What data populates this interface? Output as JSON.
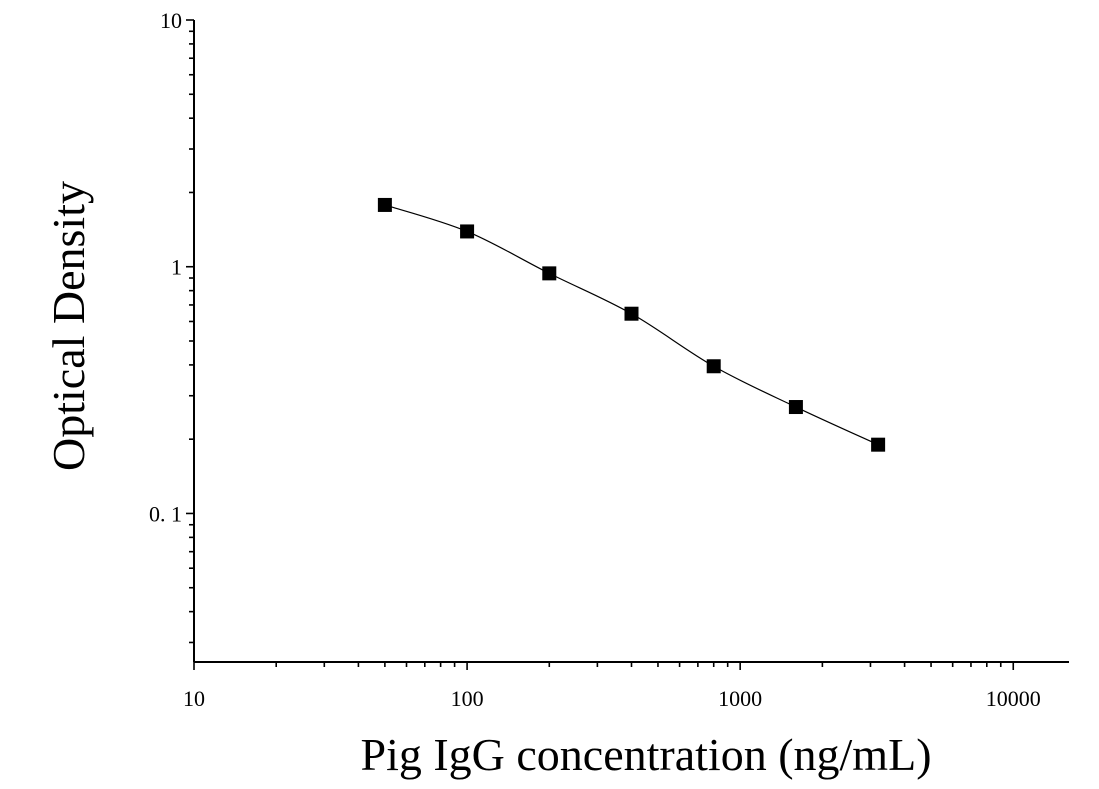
{
  "chart_data": {
    "type": "scatter",
    "title": "",
    "xlabel": "Pig IgG concentration (ng/mL)",
    "ylabel": "Optical Density",
    "x_scale": "log",
    "y_scale": "log",
    "xlim": [
      10,
      16000
    ],
    "ylim": [
      0.025,
      10
    ],
    "x_tick_values": [
      10,
      100,
      1000,
      10000
    ],
    "x_tick_labels": [
      "10",
      "100",
      "1000",
      "10000"
    ],
    "y_tick_values": [
      0.1,
      1,
      10
    ],
    "y_tick_labels": [
      "0. 1",
      "1",
      "10"
    ],
    "grid": false,
    "legend": "none",
    "marker": "square",
    "series": [
      {
        "x": [
          50,
          100,
          200,
          400,
          800,
          1600,
          3200
        ],
        "y": [
          1.78,
          1.39,
          0.94,
          0.645,
          0.395,
          0.27,
          0.19
        ],
        "fit": "four-parameter logistic curve"
      }
    ],
    "colors": {
      "marker": "#000000",
      "line": "#000000",
      "axis": "#000000"
    }
  }
}
